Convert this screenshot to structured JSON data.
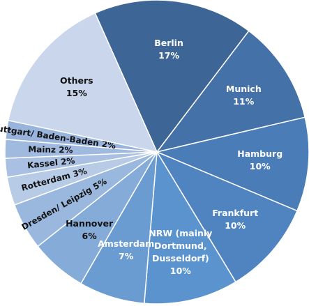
{
  "chart_data": {
    "type": "pie",
    "categories": [
      "Berlin",
      "Munich",
      "Hamburg",
      "Frankfurt",
      "NRW (mainly Dortmund, Dusseldorf)",
      "Amsterdam",
      "Hannover",
      "Dresden/ Leipzig",
      "Rotterdam",
      "Kassel",
      "Mainz",
      "Stuttgart/ Baden-Baden",
      "Others"
    ],
    "values": [
      17,
      11,
      10,
      10,
      10,
      7,
      6,
      5,
      3,
      2,
      2,
      2,
      15
    ],
    "value_labels": [
      "17%",
      "11%",
      "10%",
      "10%",
      "10%",
      "7%",
      "6%",
      "5%",
      "3%",
      "2%",
      "2%",
      "2%",
      "15%"
    ],
    "colors": [
      "#3d6595",
      "#4472a8",
      "#4a7cb8",
      "#4f84c1",
      "#5b93cf",
      "#6a9bd1",
      "#85acd8",
      "#9ab8de",
      "#b7cbe7",
      "#a9c0e2",
      "#a0b9df",
      "#98b3dc",
      "#c9d6ec"
    ]
  }
}
